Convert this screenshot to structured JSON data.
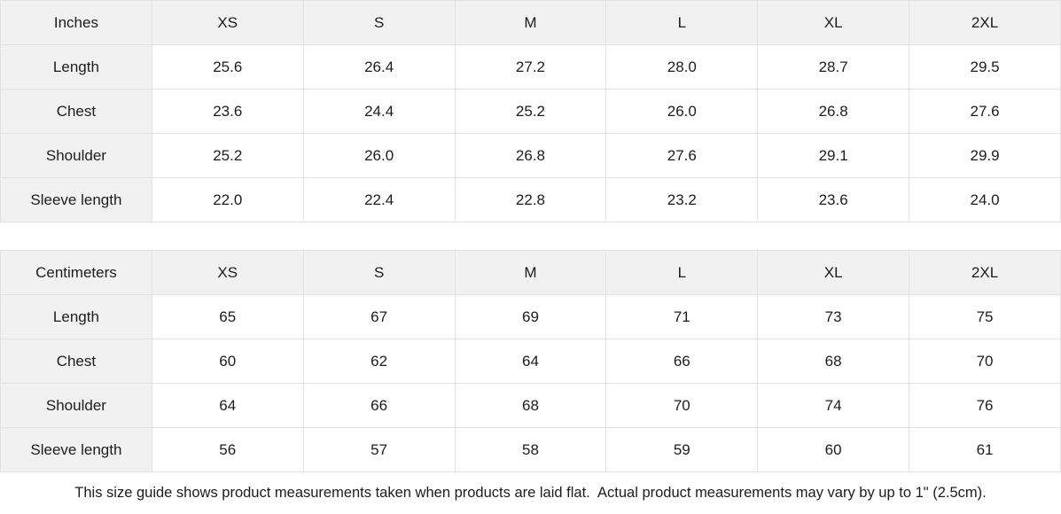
{
  "size_guide": {
    "tables": [
      {
        "unit_label": "Inches",
        "columns": [
          "XS",
          "S",
          "M",
          "L",
          "XL",
          "2XL"
        ],
        "rows": [
          {
            "label": "Length",
            "values": [
              "25.6",
              "26.4",
              "27.2",
              "28.0",
              "28.7",
              "29.5"
            ]
          },
          {
            "label": "Chest",
            "values": [
              "23.6",
              "24.4",
              "25.2",
              "26.0",
              "26.8",
              "27.6"
            ]
          },
          {
            "label": "Shoulder",
            "values": [
              "25.2",
              "26.0",
              "26.8",
              "27.6",
              "29.1",
              "29.9"
            ]
          },
          {
            "label": "Sleeve length",
            "values": [
              "22.0",
              "22.4",
              "22.8",
              "23.2",
              "23.6",
              "24.0"
            ]
          }
        ]
      },
      {
        "unit_label": "Centimeters",
        "columns": [
          "XS",
          "S",
          "M",
          "L",
          "XL",
          "2XL"
        ],
        "rows": [
          {
            "label": "Length",
            "values": [
              "65",
              "67",
              "69",
              "71",
              "73",
              "75"
            ]
          },
          {
            "label": "Chest",
            "values": [
              "60",
              "62",
              "64",
              "66",
              "68",
              "70"
            ]
          },
          {
            "label": "Shoulder",
            "values": [
              "64",
              "66",
              "68",
              "70",
              "74",
              "76"
            ]
          },
          {
            "label": "Sleeve length",
            "values": [
              "56",
              "57",
              "58",
              "59",
              "60",
              "61"
            ]
          }
        ]
      }
    ],
    "footer_note": "This size guide shows product measurements taken when products are laid flat.  Actual product measurements may vary by up to 1\" (2.5cm).",
    "colors": {
      "cell_fill": "#f1f1f1",
      "border": "#e2e2e2",
      "text": "#1c1c1c",
      "background": "#ffffff"
    }
  }
}
